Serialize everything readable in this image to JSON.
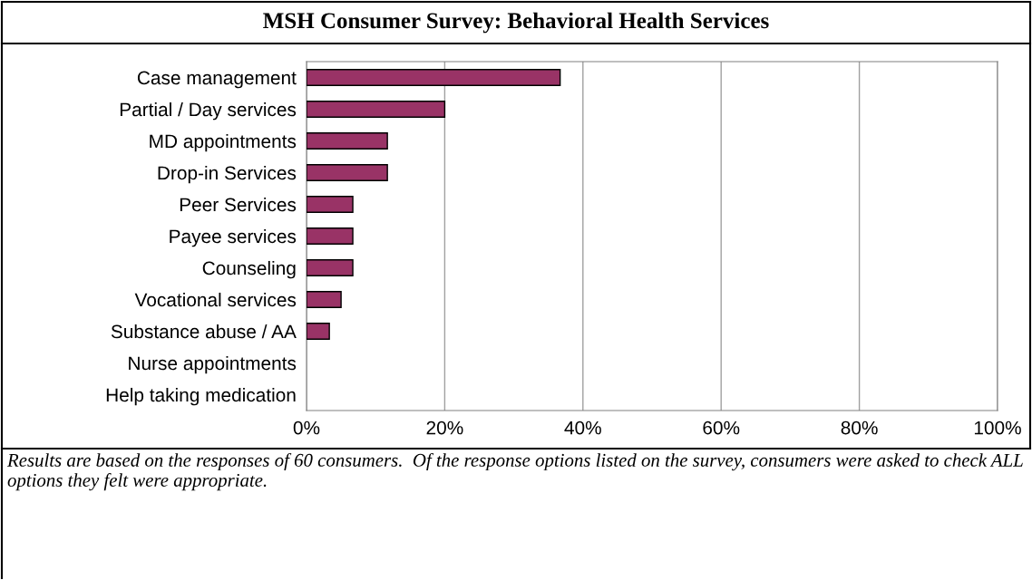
{
  "chart_data": {
    "type": "bar",
    "orientation": "horizontal",
    "title": "MSH Consumer Survey: Behavioral Health Services",
    "categories": [
      "Case management",
      "Partial / Day services",
      "MD appointments",
      "Drop-in Services",
      "Peer Services",
      "Payee services",
      "Counseling",
      "Vocational services",
      "Substance abuse / AA",
      "Nurse appointments",
      "Help taking medication"
    ],
    "values": [
      36.7,
      20,
      11.7,
      11.7,
      6.7,
      6.7,
      6.7,
      5,
      3.3,
      0,
      0
    ],
    "color": "#993366",
    "xlim": [
      0,
      100
    ],
    "xticks": [
      {
        "value": 0,
        "label": "0%"
      },
      {
        "value": 20,
        "label": "20%"
      },
      {
        "value": 40,
        "label": "40%"
      },
      {
        "value": 60,
        "label": "60%"
      },
      {
        "value": 80,
        "label": "80%"
      },
      {
        "value": 100,
        "label": "100%"
      }
    ],
    "grid": "x",
    "annotations": [
      "Results are based on the responses of 60 consumers.  Of the response options listed on the survey, consumers were asked to check ALL options they felt were appropriate."
    ]
  }
}
